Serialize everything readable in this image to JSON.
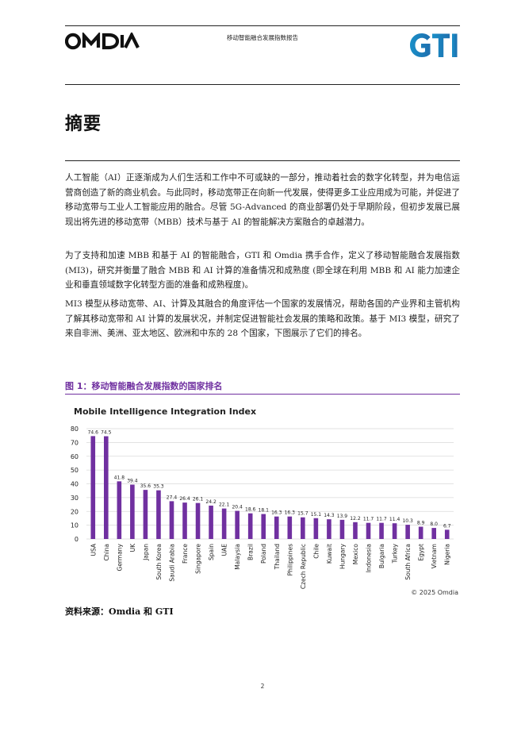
{
  "header": {
    "logo_left": "OMDIA",
    "report_title": "移动智能融合发展指数报告",
    "logo_right": "GTI"
  },
  "section_title": "摘要",
  "paragraphs": [
    "人工智能（AI）正逐渐成为人们生活和工作中不可或缺的一部分，推动着社会的数字化转型，并为电信运营商创造了新的商业机会。与此同时，移动宽带正在向新一代发展，使得更多工业应用成为可能，并促进了移动宽带与工业人工智能应用的融合。尽管 5G-Advanced 的商业部署仍处于早期阶段，但初步发展已展现出将先进的移动宽带（MBB）技术与基于 AI 的智能解决方案融合的卓越潜力。",
    "为了支持和加速 MBB 和基于 AI 的智能融合，GTI 和 Omdia 携手合作，定义了移动智能融合发展指数(MI3)，研究并衡量了融合 MBB 和 AI 计算的准备情况和成熟度 (即全球在利用 MBB 和 AI 能力加速企业和垂直领域数字化转型方面的准备和成熟程度)。",
    "MI3 模型从移动宽带、AI、计算及其融合的角度评估一个国家的发展情况，帮助各国的产业界和主管机构了解其移动宽带和 AI 计算的发展状况，并制定促进智能社会发展的策略和政策。基于 MI3 模型，研究了来自非洲、美洲、亚太地区、欧洲和中东的 28 个国家，下图展示了它们的排名。"
  ],
  "figure_caption": "图 1：移动智能融合发展指数的国家排名",
  "source_note": "资料来源：Omdia 和 GTI",
  "page_number": "2",
  "chart_data": {
    "type": "bar",
    "title": "Mobile Intelligence Integration Index",
    "copyright": "© 2025 Omdia",
    "bar_color": "#7030a0",
    "ylim": [
      0,
      80
    ],
    "yticks": [
      0,
      10,
      20,
      30,
      40,
      50,
      60,
      70,
      80
    ],
    "grid": true,
    "categories": [
      "USA",
      "China",
      "Germany",
      "UK",
      "Japan",
      "South Korea",
      "Saudi Arabia",
      "France",
      "Singapore",
      "Spain",
      "UAE",
      "Malaysia",
      "Brazil",
      "Poland",
      "Thailand",
      "Philippines",
      "Czech Republic",
      "Chile",
      "Kuwait",
      "Hungary",
      "Mexico",
      "Indonesia",
      "Bulgaria",
      "Turkey",
      "South Africa",
      "Egypt",
      "Vietnam",
      "Nigeria"
    ],
    "values": [
      74.6,
      74.5,
      41.8,
      39.4,
      35.6,
      35.3,
      27.4,
      26.4,
      26.1,
      24.2,
      22.1,
      20.4,
      18.6,
      18.1,
      16.3,
      16.3,
      15.7,
      15.1,
      14.3,
      13.9,
      12.2,
      11.7,
      11.7,
      11.4,
      10.3,
      8.9,
      8.0,
      6.7
    ],
    "data_labels": [
      "74.6",
      "74.5",
      "41.8",
      "39.4",
      "35.6",
      "35.3",
      "27.4",
      "26.4",
      "26.1",
      "24.2",
      "22.1",
      "20.4",
      "18.6",
      "18.1",
      "16.3",
      "16.3",
      "15.7",
      "15.1",
      "14.3",
      "13.9",
      "12.2",
      "11.7",
      "11.7",
      "11.4",
      "10.3",
      "8.9",
      "8.0",
      "6.7"
    ]
  }
}
